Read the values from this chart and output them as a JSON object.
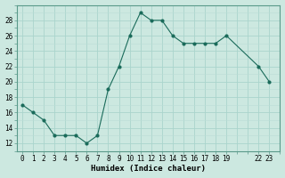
{
  "x": [
    0,
    1,
    2,
    3,
    4,
    5,
    6,
    7,
    8,
    9,
    10,
    11,
    12,
    13,
    14,
    15,
    16,
    17,
    18,
    19,
    22,
    23
  ],
  "y": [
    17,
    16,
    15,
    13,
    13,
    13,
    12,
    13,
    19,
    22,
    26,
    29,
    28,
    28,
    26,
    25,
    25,
    25,
    25,
    26,
    22,
    20
  ],
  "line_color": "#1a6b5a",
  "marker_color": "#1a6b5a",
  "bg_color": "#cce8e0",
  "grid_major_color": "#aad4cc",
  "grid_minor_color": "#bbddd6",
  "xlabel": "Humidex (Indice chaleur)",
  "ylim": [
    11,
    30
  ],
  "yticks": [
    12,
    14,
    16,
    18,
    20,
    22,
    24,
    26,
    28
  ],
  "xlim": [
    -0.5,
    24.0
  ],
  "tick_fontsize": 5.5,
  "label_fontsize": 6.5
}
